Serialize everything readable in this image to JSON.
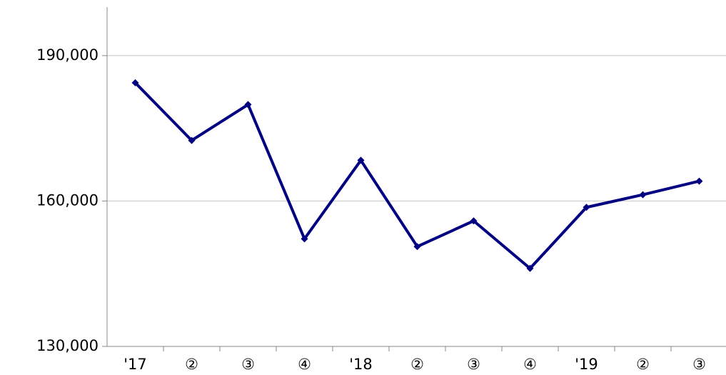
{
  "chart_data": {
    "type": "line",
    "categories": [
      "'17",
      "②",
      "③",
      "④",
      "'18",
      "②",
      "③",
      "④",
      "'19",
      "②",
      "③"
    ],
    "series": [
      {
        "name": null,
        "color": "#000080",
        "values": [
          184400,
          172500,
          179900,
          152200,
          168400,
          150600,
          155900,
          146100,
          158700,
          161300,
          164100
        ]
      }
    ],
    "ylim": [
      130000,
      200000
    ],
    "yticks": [
      {
        "value": 130000,
        "label": "130,000"
      },
      {
        "value": 160000,
        "label": "160,000"
      },
      {
        "value": 190000,
        "label": "190,000"
      }
    ],
    "grid": true
  }
}
